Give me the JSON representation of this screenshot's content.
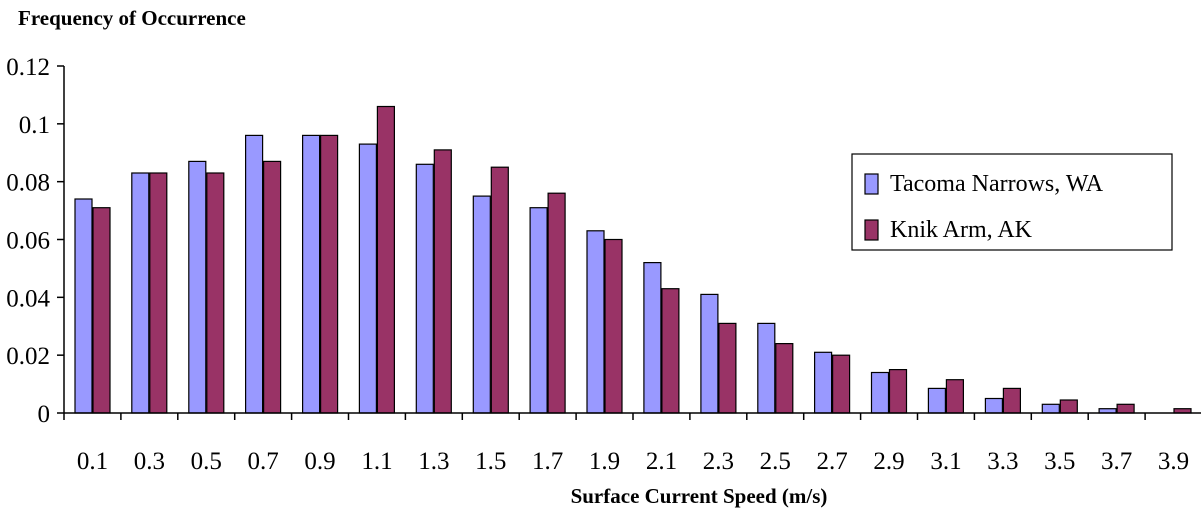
{
  "chart_data": {
    "type": "bar",
    "title": "",
    "ylabel": "Frequency of Occurrence",
    "xlabel": "Surface Current Speed (m/s)",
    "categories": [
      "0.1",
      "0.3",
      "0.5",
      "0.7",
      "0.9",
      "1.1",
      "1.3",
      "1.5",
      "1.7",
      "1.9",
      "2.1",
      "2.3",
      "2.5",
      "2.7",
      "2.9",
      "3.1",
      "3.3",
      "3.5",
      "3.7",
      "3.9"
    ],
    "ylim": [
      0,
      0.12
    ],
    "yticks": [
      "0",
      "0.02",
      "0.04",
      "0.06",
      "0.08",
      "0.1",
      "0.12"
    ],
    "ytick_values": [
      0,
      0.02,
      0.04,
      0.06,
      0.08,
      0.1,
      0.12
    ],
    "grid": false,
    "legend_position": "right",
    "series": [
      {
        "name": "Tacoma Narrows, WA",
        "color": "#9999ff",
        "values": [
          0.074,
          0.083,
          0.087,
          0.096,
          0.096,
          0.093,
          0.086,
          0.075,
          0.071,
          0.063,
          0.052,
          0.041,
          0.031,
          0.021,
          0.014,
          0.0085,
          0.005,
          0.003,
          0.0015,
          0
        ]
      },
      {
        "name": "Knik Arm, AK",
        "color": "#993366",
        "values": [
          0.071,
          0.083,
          0.083,
          0.087,
          0.096,
          0.106,
          0.091,
          0.085,
          0.076,
          0.06,
          0.043,
          0.031,
          0.024,
          0.02,
          0.015,
          0.0115,
          0.0085,
          0.0045,
          0.003,
          0.0015
        ]
      }
    ]
  }
}
